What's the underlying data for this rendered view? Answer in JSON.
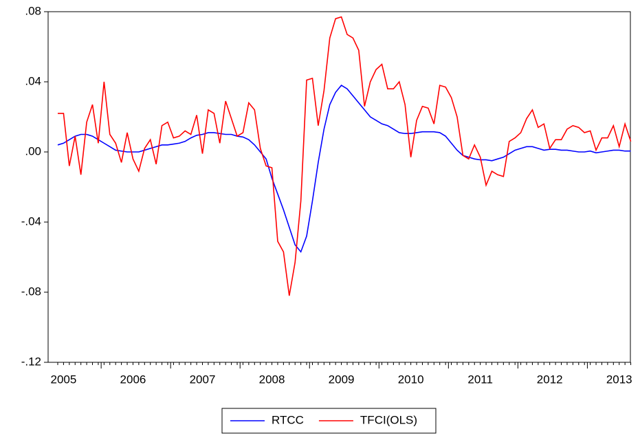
{
  "chart_data": {
    "type": "line",
    "categories": [
      null,
      "2005",
      null,
      null,
      null,
      null,
      null,
      null,
      null,
      null,
      null,
      null,
      null,
      "2006",
      null,
      null,
      null,
      null,
      null,
      null,
      null,
      null,
      null,
      null,
      null,
      "2007",
      null,
      null,
      null,
      null,
      null,
      null,
      null,
      null,
      null,
      null,
      null,
      "2008",
      null,
      null,
      null,
      null,
      null,
      null,
      null,
      null,
      null,
      null,
      null,
      "2009",
      null,
      null,
      null,
      null,
      null,
      null,
      null,
      null,
      null,
      null,
      null,
      "2010",
      null,
      null,
      null,
      null,
      null,
      null,
      null,
      null,
      null,
      null,
      null,
      "2011",
      null,
      null,
      null,
      null,
      null,
      null,
      null,
      null,
      null,
      null,
      null,
      "2012",
      null,
      null,
      null,
      null,
      null,
      null,
      null,
      null,
      null,
      null,
      null,
      "2013",
      null,
      null
    ],
    "series": [
      {
        "name": "RTCC",
        "color": "#0000ff",
        "values": [
          0.004,
          0.005,
          0.007,
          0.009,
          0.01,
          0.01,
          0.009,
          0.007,
          0.005,
          0.003,
          0.001,
          0.0005,
          0,
          0,
          0,
          0.001,
          0.002,
          0.003,
          0.004,
          0.004,
          0.0045,
          0.005,
          0.006,
          0.008,
          0.0095,
          0.01,
          0.011,
          0.011,
          0.0105,
          0.01,
          0.01,
          0.009,
          0.0085,
          0.007,
          0.004,
          0.0,
          -0.004,
          -0.015,
          -0.024,
          -0.033,
          -0.043,
          -0.053,
          -0.057,
          -0.048,
          -0.028,
          -0.006,
          0.013,
          0.027,
          0.034,
          0.038,
          0.036,
          0.032,
          0.028,
          0.024,
          0.02,
          0.018,
          0.016,
          0.015,
          0.013,
          0.011,
          0.0105,
          0.0105,
          0.011,
          0.0115,
          0.0115,
          0.0115,
          0.011,
          0.009,
          0.005,
          0.001,
          -0.002,
          -0.003,
          -0.004,
          -0.0045,
          -0.0045,
          -0.005,
          -0.004,
          -0.003,
          -0.001,
          0.001,
          0.002,
          0.003,
          0.003,
          0.002,
          0.001,
          0.0015,
          0.0015,
          0.001,
          0.001,
          0.0005,
          0,
          0,
          0.0005,
          -0.0005,
          0,
          0.0005,
          0.001,
          0.001,
          0.0005,
          0.0005
        ]
      },
      {
        "name": "TFCI(OLS)",
        "color": "#ff0000",
        "values": [
          0.022,
          0.022,
          -0.008,
          0.009,
          -0.013,
          0.017,
          0.027,
          0.005,
          0.04,
          0.01,
          0.005,
          -0.006,
          0.011,
          -0.004,
          -0.011,
          0.002,
          0.007,
          -0.007,
          0.015,
          0.017,
          0.008,
          0.009,
          0.012,
          0.01,
          0.021,
          -0.001,
          0.024,
          0.022,
          0.005,
          0.029,
          0.019,
          0.009,
          0.011,
          0.028,
          0.024,
          0.002,
          -0.008,
          -0.009,
          -0.051,
          -0.057,
          -0.082,
          -0.063,
          -0.028,
          0.041,
          0.042,
          0.015,
          0.035,
          0.065,
          0.076,
          0.077,
          0.067,
          0.065,
          0.058,
          0.026,
          0.04,
          0.047,
          0.05,
          0.036,
          0.036,
          0.04,
          0.027,
          -0.003,
          0.018,
          0.026,
          0.025,
          0.016,
          0.038,
          0.037,
          0.031,
          0.02,
          -0.002,
          -0.004,
          0.004,
          -0.003,
          -0.019,
          -0.011,
          -0.013,
          -0.014,
          0.006,
          0.008,
          0.011,
          0.019,
          0.024,
          0.014,
          0.016,
          0.002,
          0.007,
          0.007,
          0.013,
          0.015,
          0.014,
          0.011,
          0.012,
          0.001,
          0.008,
          0.008,
          0.015,
          0.003,
          0.016,
          0.006
        ]
      }
    ],
    "ylim": [
      -0.12,
      0.08
    ],
    "yticks": [
      {
        "value": -0.12,
        "label": "-.12"
      },
      {
        "value": -0.08,
        "label": "-.08"
      },
      {
        "value": -0.04,
        "label": "-.04"
      },
      {
        "value": 0,
        "label": ".00"
      },
      {
        "value": 0.04,
        "label": ".04"
      },
      {
        "value": 0.08,
        "label": ".08"
      }
    ],
    "legend": "bottom"
  }
}
